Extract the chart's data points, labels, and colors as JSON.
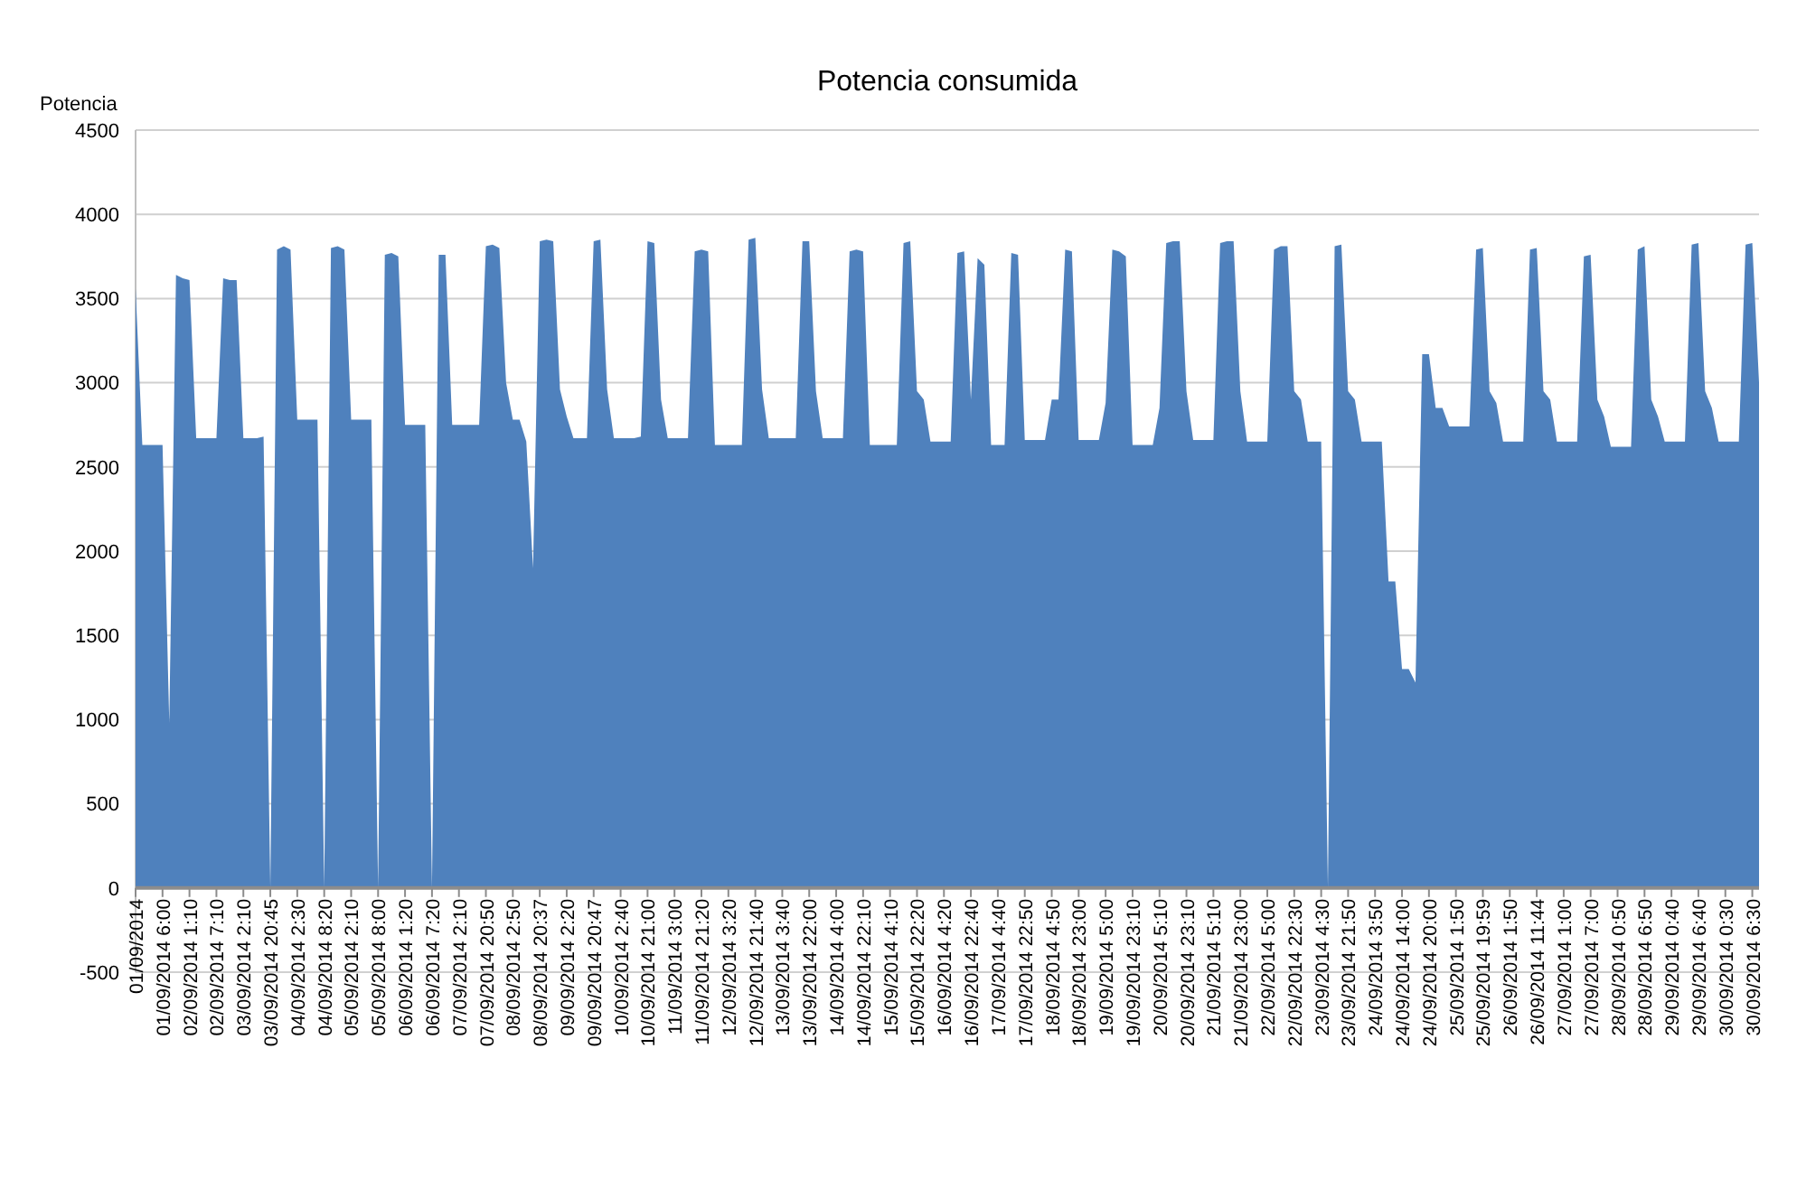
{
  "chart_data": {
    "type": "area",
    "title": "Potencia consumida",
    "ylabel": "Potencia",
    "color": "#4f81bd",
    "ylim": [
      -500,
      4500
    ],
    "yticks": [
      -500,
      0,
      500,
      1000,
      1500,
      2000,
      2500,
      3000,
      3500,
      4000,
      4500
    ],
    "grid": "y",
    "categories": [
      "01/09/2014",
      null,
      null,
      null,
      "01/09/2014 6:00",
      null,
      null,
      null,
      "02/09/2014 1:10",
      null,
      null,
      null,
      "02/09/2014 7:10",
      null,
      null,
      null,
      "03/09/2014 2:10",
      null,
      null,
      null,
      "03/09/2014 20:45",
      null,
      null,
      null,
      "04/09/2014 2:30",
      null,
      null,
      null,
      "04/09/2014 8:20",
      null,
      null,
      null,
      "05/09/2014 2:10",
      null,
      null,
      null,
      "05/09/2014 8:00",
      null,
      null,
      null,
      "06/09/2014 1:20",
      null,
      null,
      null,
      "06/09/2014 7:20",
      null,
      null,
      null,
      "07/09/2014 2:10",
      null,
      null,
      null,
      "07/09/2014 20:50",
      null,
      null,
      null,
      "08/09/2014 2:50",
      null,
      null,
      null,
      "08/09/2014 20:37",
      null,
      null,
      null,
      "09/09/2014 2:20",
      null,
      null,
      null,
      "09/09/2014 20:47",
      null,
      null,
      null,
      "10/09/2014 2:40",
      null,
      null,
      null,
      "10/09/2014 21:00",
      null,
      null,
      null,
      "11/09/2014 3:00",
      null,
      null,
      null,
      "11/09/2014 21:20",
      null,
      null,
      null,
      "12/09/2014 3:20",
      null,
      null,
      null,
      "12/09/2014 21:40",
      null,
      null,
      null,
      "13/09/2014 3:40",
      null,
      null,
      null,
      "13/09/2014 22:00",
      null,
      null,
      null,
      "14/09/2014 4:00",
      null,
      null,
      null,
      "14/09/2014 22:10",
      null,
      null,
      null,
      "15/09/2014 4:10",
      null,
      null,
      null,
      "15/09/2014 22:20",
      null,
      null,
      null,
      "16/09/2014 4:20",
      null,
      null,
      null,
      "16/09/2014 22:40",
      null,
      null,
      null,
      "17/09/2014 4:40",
      null,
      null,
      null,
      "17/09/2014 22:50",
      null,
      null,
      null,
      "18/09/2014 4:50",
      null,
      null,
      null,
      "18/09/2014 23:00",
      null,
      null,
      null,
      "19/09/2014 5:00",
      null,
      null,
      null,
      "19/09/2014 23:10",
      null,
      null,
      null,
      "20/09/2014 5:10",
      null,
      null,
      null,
      "20/09/2014 23:10",
      null,
      null,
      null,
      "21/09/2014 5:10",
      null,
      null,
      null,
      "21/09/2014 23:00",
      null,
      null,
      null,
      "22/09/2014 5:00",
      null,
      null,
      null,
      "22/09/2014 22:30",
      null,
      null,
      null,
      "23/09/2014 4:30",
      null,
      null,
      null,
      "23/09/2014 21:50",
      null,
      null,
      null,
      "24/09/2014 3:50",
      null,
      null,
      null,
      "24/09/2014 14:00",
      null,
      null,
      null,
      "24/09/2014 20:00",
      null,
      null,
      null,
      "25/09/2014 1:50",
      null,
      null,
      null,
      "25/09/2014 19:59",
      null,
      null,
      null,
      "26/09/2014 1:50",
      null,
      null,
      null,
      "26/09/2014 11:44",
      null,
      null,
      null,
      "27/09/2014 1:00",
      null,
      null,
      null,
      "27/09/2014 7:00",
      null,
      null,
      null,
      "28/09/2014 0:50",
      null,
      null,
      null,
      "28/09/2014 6:50",
      null,
      null,
      null,
      "29/09/2014 0:40",
      null,
      null,
      null,
      "29/09/2014 6:40",
      null,
      null,
      null,
      "30/09/2014 0:30",
      null,
      null,
      null,
      "30/09/2014 6:30",
      null
    ],
    "values": [
      3560,
      2630,
      2630,
      2630,
      2630,
      980,
      3640,
      3620,
      3610,
      2670,
      2670,
      2670,
      2670,
      3620,
      3610,
      3610,
      2670,
      2670,
      2670,
      2680,
      0,
      3790,
      3810,
      3790,
      2780,
      2780,
      2780,
      2780,
      0,
      3800,
      3810,
      3790,
      2780,
      2780,
      2780,
      2780,
      0,
      3760,
      3770,
      3750,
      2750,
      2750,
      2750,
      2750,
      0,
      3760,
      3760,
      2750,
      2750,
      2750,
      2750,
      2750,
      3810,
      3820,
      3800,
      3000,
      2780,
      2780,
      2650,
      1900,
      3840,
      3850,
      3840,
      2960,
      2800,
      2670,
      2670,
      2670,
      3840,
      3850,
      2960,
      2670,
      2670,
      2670,
      2670,
      2680,
      3840,
      3830,
      2900,
      2670,
      2670,
      2670,
      2670,
      3780,
      3790,
      3780,
      2630,
      2630,
      2630,
      2630,
      2630,
      3850,
      3860,
      2960,
      2670,
      2670,
      2670,
      2670,
      2670,
      3840,
      3840,
      2950,
      2670,
      2670,
      2670,
      2670,
      3780,
      3790,
      3780,
      2630,
      2630,
      2630,
      2630,
      2630,
      3830,
      3840,
      2950,
      2900,
      2650,
      2650,
      2650,
      2650,
      3770,
      3780,
      2900,
      3740,
      3700,
      2630,
      2630,
      2630,
      3770,
      3760,
      2660,
      2660,
      2660,
      2660,
      2900,
      2900,
      3790,
      3780,
      2660,
      2660,
      2660,
      2660,
      2880,
      3790,
      3780,
      3750,
      2630,
      2630,
      2630,
      2630,
      2850,
      3830,
      3840,
      3840,
      2950,
      2660,
      2660,
      2660,
      2660,
      3830,
      3840,
      3840,
      2950,
      2650,
      2650,
      2650,
      2650,
      3790,
      3810,
      3810,
      2950,
      2900,
      2650,
      2650,
      2650,
      0,
      3810,
      3820,
      2950,
      2900,
      2650,
      2650,
      2650,
      2650,
      1820,
      1820,
      1300,
      1300,
      1220,
      3170,
      3170,
      2850,
      2850,
      2740,
      2740,
      2740,
      2740,
      3790,
      3800,
      2950,
      2880,
      2650,
      2650,
      2650,
      2650,
      3790,
      3800,
      2950,
      2900,
      2650,
      2650,
      2650,
      2650,
      3750,
      3760,
      2900,
      2800,
      2620,
      2620,
      2620,
      2620,
      3790,
      3810,
      2900,
      2800,
      2650,
      2650,
      2650,
      2650,
      3820,
      3830,
      2950,
      2850,
      2650,
      2650,
      2650,
      2650,
      3820,
      3830,
      3000
    ]
  }
}
